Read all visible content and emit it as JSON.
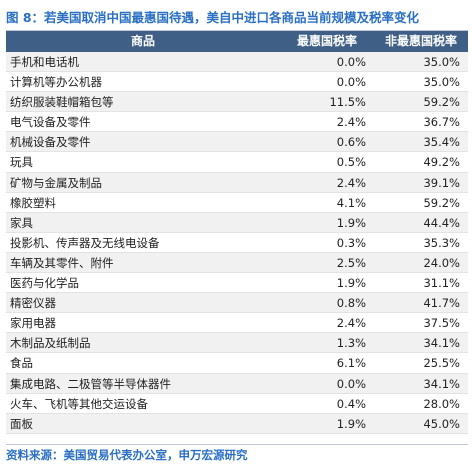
{
  "title": "图 8：若美国取消中国最惠国待遇，美自中进口各商品当前规模及税率变化",
  "table": {
    "headers": [
      "商品",
      "最惠国税率",
      "非最惠国税率"
    ],
    "rows": [
      [
        "手机和电话机",
        "0.0%",
        "35.0%"
      ],
      [
        "计算机等办公机器",
        "0.0%",
        "35.0%"
      ],
      [
        "纺织服装鞋帽箱包等",
        "11.5%",
        "59.2%"
      ],
      [
        "电气设备及零件",
        "2.4%",
        "36.7%"
      ],
      [
        "机械设备及零件",
        "0.6%",
        "35.4%"
      ],
      [
        "玩具",
        "0.5%",
        "49.2%"
      ],
      [
        "矿物与金属及制品",
        "2.4%",
        "39.1%"
      ],
      [
        "橡胶塑料",
        "4.1%",
        "59.2%"
      ],
      [
        "家具",
        "1.9%",
        "44.4%"
      ],
      [
        "投影机、传声器及无线电设备",
        "0.3%",
        "35.3%"
      ],
      [
        "车辆及其零件、附件",
        "2.5%",
        "24.0%"
      ],
      [
        "医药与化学品",
        "1.9%",
        "31.1%"
      ],
      [
        "精密仪器",
        "0.8%",
        "41.7%"
      ],
      [
        "家用电器",
        "2.4%",
        "37.5%"
      ],
      [
        "木制品及纸制品",
        "1.3%",
        "34.1%"
      ],
      [
        "食品",
        "6.1%",
        "25.5%"
      ],
      [
        "集成电路、二极管等半导体器件",
        "0.0%",
        "34.1%"
      ],
      [
        "火车、飞机等其他交运设备",
        "0.4%",
        "28.0%"
      ],
      [
        "面板",
        "1.9%",
        "45.0%"
      ]
    ]
  },
  "source": "资料来源：美国贸易代表办公室，申万宏源研究"
}
